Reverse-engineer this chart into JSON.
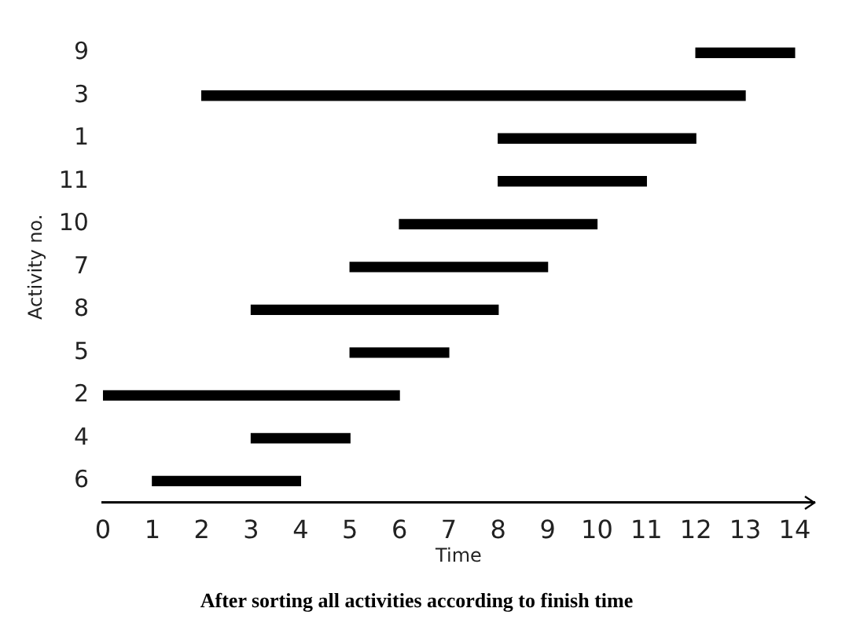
{
  "chart_data": {
    "type": "bar",
    "orientation": "horizontal",
    "title": "After sorting all activities according to finish time",
    "xlabel": "Time",
    "ylabel": "Activity no.",
    "categories": [
      "9",
      "3",
      "1",
      "11",
      "10",
      "7",
      "8",
      "5",
      "2",
      "4",
      "6"
    ],
    "base": [
      12,
      2,
      8,
      8,
      6,
      5,
      3,
      5,
      0,
      3,
      1
    ],
    "values": [
      2,
      11,
      4,
      3,
      4,
      4,
      5,
      2,
      6,
      2,
      3
    ],
    "color": "#000000",
    "xlim": [
      0,
      14.4
    ],
    "xticks": [
      0,
      1,
      2,
      3,
      4,
      5,
      6,
      7,
      8,
      9,
      10,
      11,
      12,
      13,
      14
    ],
    "grid": false,
    "legend": false
  }
}
